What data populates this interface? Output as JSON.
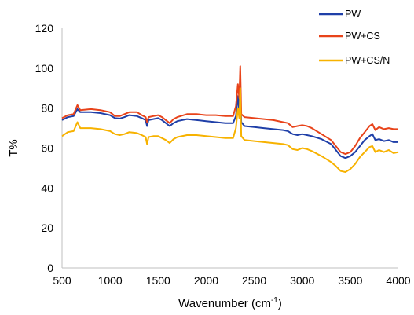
{
  "chart_data": {
    "type": "line",
    "title": "",
    "xlabel": "Wavenumber (cm",
    "xlabel_sup": "-1",
    "xlabel_end": ")",
    "ylabel": "T%",
    "xlim": [
      500,
      4000
    ],
    "ylim": [
      0,
      120
    ],
    "xticks": [
      500,
      1000,
      1500,
      2000,
      2500,
      3000,
      3500,
      4000
    ],
    "yticks": [
      0,
      20,
      40,
      60,
      80,
      100,
      120
    ],
    "grid": false,
    "legend_position": "top-right",
    "series": [
      {
        "name": "PW",
        "color": "#1f3fa8",
        "points": [
          [
            500,
            74
          ],
          [
            560,
            75.5
          ],
          [
            620,
            76
          ],
          [
            660,
            79.5
          ],
          [
            690,
            78
          ],
          [
            800,
            78
          ],
          [
            900,
            77.5
          ],
          [
            1000,
            76.5
          ],
          [
            1050,
            75
          ],
          [
            1100,
            74.8
          ],
          [
            1150,
            75.5
          ],
          [
            1200,
            76.5
          ],
          [
            1280,
            76
          ],
          [
            1330,
            75
          ],
          [
            1370,
            74
          ],
          [
            1385,
            71
          ],
          [
            1400,
            74
          ],
          [
            1450,
            74.5
          ],
          [
            1500,
            75
          ],
          [
            1540,
            74
          ],
          [
            1580,
            72.5
          ],
          [
            1620,
            71
          ],
          [
            1660,
            72.5
          ],
          [
            1700,
            73.5
          ],
          [
            1800,
            74.5
          ],
          [
            1900,
            74
          ],
          [
            2000,
            73.5
          ],
          [
            2100,
            73
          ],
          [
            2200,
            72.5
          ],
          [
            2280,
            72.5
          ],
          [
            2310,
            76
          ],
          [
            2330,
            86
          ],
          [
            2345,
            78
          ],
          [
            2355,
            91
          ],
          [
            2365,
            73
          ],
          [
            2400,
            71
          ],
          [
            2500,
            70.5
          ],
          [
            2600,
            70
          ],
          [
            2700,
            69.5
          ],
          [
            2800,
            69
          ],
          [
            2850,
            68.5
          ],
          [
            2900,
            67
          ],
          [
            2950,
            66.5
          ],
          [
            3000,
            67
          ],
          [
            3050,
            66.5
          ],
          [
            3100,
            66
          ],
          [
            3200,
            64.5
          ],
          [
            3300,
            62
          ],
          [
            3350,
            59
          ],
          [
            3400,
            56
          ],
          [
            3450,
            55
          ],
          [
            3500,
            56
          ],
          [
            3550,
            58
          ],
          [
            3600,
            61
          ],
          [
            3650,
            64
          ],
          [
            3700,
            66
          ],
          [
            3730,
            67
          ],
          [
            3760,
            64
          ],
          [
            3800,
            64.5
          ],
          [
            3850,
            63.5
          ],
          [
            3900,
            64
          ],
          [
            3950,
            63
          ],
          [
            4000,
            63
          ]
        ]
      },
      {
        "name": "PW+CS",
        "color": "#e8431a",
        "points": [
          [
            500,
            75
          ],
          [
            560,
            76.5
          ],
          [
            620,
            77
          ],
          [
            660,
            81.5
          ],
          [
            690,
            79
          ],
          [
            800,
            79.5
          ],
          [
            900,
            79
          ],
          [
            1000,
            78
          ],
          [
            1050,
            76
          ],
          [
            1100,
            76
          ],
          [
            1150,
            77
          ],
          [
            1200,
            78
          ],
          [
            1280,
            78
          ],
          [
            1330,
            76.5
          ],
          [
            1370,
            75.5
          ],
          [
            1385,
            73
          ],
          [
            1400,
            75.5
          ],
          [
            1450,
            76
          ],
          [
            1500,
            76.5
          ],
          [
            1540,
            75.5
          ],
          [
            1580,
            74
          ],
          [
            1620,
            72.5
          ],
          [
            1660,
            74.5
          ],
          [
            1700,
            75.5
          ],
          [
            1800,
            77
          ],
          [
            1900,
            77
          ],
          [
            2000,
            76.5
          ],
          [
            2100,
            76.5
          ],
          [
            2200,
            76
          ],
          [
            2280,
            76
          ],
          [
            2310,
            81
          ],
          [
            2330,
            92
          ],
          [
            2345,
            85
          ],
          [
            2355,
            101
          ],
          [
            2365,
            77
          ],
          [
            2400,
            75.5
          ],
          [
            2500,
            75
          ],
          [
            2600,
            74.5
          ],
          [
            2700,
            74
          ],
          [
            2800,
            73
          ],
          [
            2850,
            72.5
          ],
          [
            2900,
            70.5
          ],
          [
            2950,
            71
          ],
          [
            3000,
            71.5
          ],
          [
            3050,
            71
          ],
          [
            3100,
            70
          ],
          [
            3200,
            67
          ],
          [
            3300,
            64
          ],
          [
            3350,
            61
          ],
          [
            3400,
            58
          ],
          [
            3450,
            57
          ],
          [
            3500,
            58
          ],
          [
            3550,
            61
          ],
          [
            3600,
            65
          ],
          [
            3650,
            68
          ],
          [
            3700,
            71
          ],
          [
            3730,
            72
          ],
          [
            3760,
            69
          ],
          [
            3800,
            70.5
          ],
          [
            3850,
            69.5
          ],
          [
            3900,
            70
          ],
          [
            3950,
            69.5
          ],
          [
            4000,
            69.5
          ]
        ]
      },
      {
        "name": "PW+CS/N",
        "color": "#f7b200",
        "points": [
          [
            500,
            66
          ],
          [
            560,
            68
          ],
          [
            620,
            68.5
          ],
          [
            660,
            73
          ],
          [
            690,
            70
          ],
          [
            800,
            70
          ],
          [
            900,
            69.5
          ],
          [
            1000,
            68.5
          ],
          [
            1050,
            67
          ],
          [
            1100,
            66.5
          ],
          [
            1150,
            67
          ],
          [
            1200,
            68
          ],
          [
            1280,
            67.5
          ],
          [
            1330,
            66.5
          ],
          [
            1370,
            65.5
          ],
          [
            1385,
            62
          ],
          [
            1400,
            65.5
          ],
          [
            1450,
            66
          ],
          [
            1500,
            66
          ],
          [
            1540,
            65
          ],
          [
            1580,
            64
          ],
          [
            1620,
            62.5
          ],
          [
            1660,
            64.5
          ],
          [
            1700,
            65.5
          ],
          [
            1800,
            66.5
          ],
          [
            1900,
            66.5
          ],
          [
            2000,
            66
          ],
          [
            2100,
            65.5
          ],
          [
            2200,
            65
          ],
          [
            2280,
            65
          ],
          [
            2310,
            70
          ],
          [
            2330,
            80
          ],
          [
            2345,
            75
          ],
          [
            2355,
            90
          ],
          [
            2365,
            66
          ],
          [
            2400,
            64
          ],
          [
            2500,
            63.5
          ],
          [
            2600,
            63
          ],
          [
            2700,
            62.5
          ],
          [
            2800,
            62
          ],
          [
            2850,
            61.5
          ],
          [
            2900,
            59.5
          ],
          [
            2950,
            59
          ],
          [
            3000,
            60
          ],
          [
            3050,
            59.5
          ],
          [
            3100,
            58.5
          ],
          [
            3200,
            56
          ],
          [
            3300,
            53
          ],
          [
            3350,
            51
          ],
          [
            3400,
            48.5
          ],
          [
            3450,
            48
          ],
          [
            3500,
            49.5
          ],
          [
            3550,
            52
          ],
          [
            3600,
            55.5
          ],
          [
            3650,
            58
          ],
          [
            3700,
            60.5
          ],
          [
            3730,
            61
          ],
          [
            3760,
            58
          ],
          [
            3800,
            59
          ],
          [
            3850,
            58
          ],
          [
            3900,
            59
          ],
          [
            3950,
            57.5
          ],
          [
            4000,
            58
          ]
        ]
      }
    ]
  }
}
